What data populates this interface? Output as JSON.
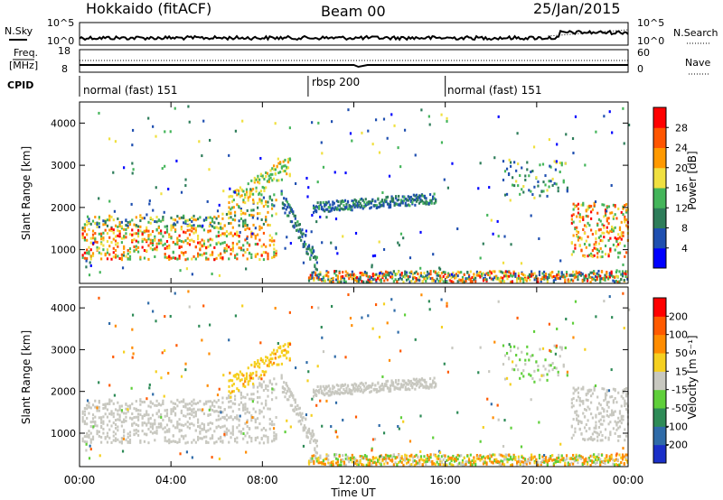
{
  "header": {
    "station": "Hokkaido (fitACF)",
    "beam": "Beam 00",
    "date": "25/Jan/2015"
  },
  "noise_panel": {
    "left_label": "N.Sky",
    "right_label": "N.Search",
    "yticks": [
      "10^5",
      "10^0"
    ]
  },
  "freq_panel": {
    "left_label_top": "Freq.",
    "left_label_unit": "[MHz]",
    "left_ticks": [
      "18",
      "8"
    ],
    "right_label": "Nave",
    "right_ticks": [
      "60",
      "0"
    ]
  },
  "cpid_panel": {
    "label": "CPID",
    "segments": [
      {
        "start_hour": 0,
        "end_hour": 10,
        "text": "normal (fast) 151"
      },
      {
        "start_hour": 10,
        "end_hour": 16,
        "text": "rbsp 200"
      },
      {
        "start_hour": 16,
        "end_hour": 24,
        "text": "normal (fast) 151"
      }
    ]
  },
  "power_panel": {
    "ylabel": "Slant Range [km]",
    "yticks": [
      "1000",
      "2000",
      "3000",
      "4000"
    ],
    "colorbar_label": "Power [dB]",
    "colorbar_ticks": [
      "4",
      "8",
      "12",
      "16",
      "20",
      "24",
      "28"
    ],
    "colors": [
      "#0000ff",
      "#1f4fb0",
      "#2e7d5a",
      "#44b55a",
      "#f0e040",
      "#ff9900",
      "#ff5500",
      "#ff0000"
    ]
  },
  "velocity_panel": {
    "ylabel": "Slant Range [km]",
    "yticks": [
      "1000",
      "2000",
      "3000",
      "4000"
    ],
    "colorbar_label": "Velocity [m s⁻¹]",
    "colorbar_ticks": [
      "200",
      "100",
      "50",
      "15",
      "-15",
      "-50",
      "-100",
      "-200"
    ],
    "colors": [
      "#1a2fc8",
      "#2f6ba8",
      "#2e8b57",
      "#5fcf3a",
      "#c8c8c0",
      "#f5d020",
      "#ff8c00",
      "#ff5a00",
      "#ff0000"
    ]
  },
  "xaxis": {
    "label": "Time UT",
    "ticks": [
      "00:00",
      "04:00",
      "08:00",
      "12:00",
      "16:00",
      "20:00",
      "00:00"
    ]
  },
  "chart_data": [
    {
      "type": "heatmap",
      "quantity": "Power",
      "x": "time (hours UT)",
      "y": "slant range (km)",
      "xlim": [
        0,
        24
      ],
      "ylim": [
        200,
        4500
      ],
      "zlim": [
        0,
        32
      ],
      "features": [
        {
          "time_range": [
            0,
            8.5
          ],
          "range_km": [
            700,
            1800
          ],
          "power_db": [
            12,
            30
          ]
        },
        {
          "time_range": [
            9.8,
            15.5
          ],
          "range_km": [
            1800,
            2300
          ],
          "power_db": [
            4,
            12
          ]
        },
        {
          "time_range": [
            10,
            24
          ],
          "range_km": [
            200,
            400
          ],
          "power_db": [
            4,
            30
          ]
        },
        {
          "time_range": [
            21.5,
            24
          ],
          "range_km": [
            800,
            2200
          ],
          "power_db": [
            12,
            30
          ]
        }
      ]
    },
    {
      "type": "heatmap",
      "quantity": "Velocity",
      "x": "time (hours UT)",
      "y": "slant range (km)",
      "xlim": [
        0,
        24
      ],
      "ylim": [
        200,
        4500
      ],
      "zlim": [
        -200,
        200
      ],
      "features": [
        {
          "time_range": [
            0,
            9
          ],
          "range_km": [
            700,
            1800
          ],
          "velocity_ms": [
            -15,
            15
          ]
        },
        {
          "time_range": [
            10,
            16
          ],
          "range_km": [
            1800,
            2200
          ],
          "velocity_ms": [
            -15,
            15
          ]
        },
        {
          "time_range": [
            10,
            24
          ],
          "range_km": [
            200,
            500
          ],
          "velocity_ms": [
            -100,
            50
          ]
        },
        {
          "time_range": [
            21.5,
            24
          ],
          "range_km": [
            800,
            2200
          ],
          "velocity_ms": [
            -15,
            15
          ]
        }
      ]
    }
  ]
}
